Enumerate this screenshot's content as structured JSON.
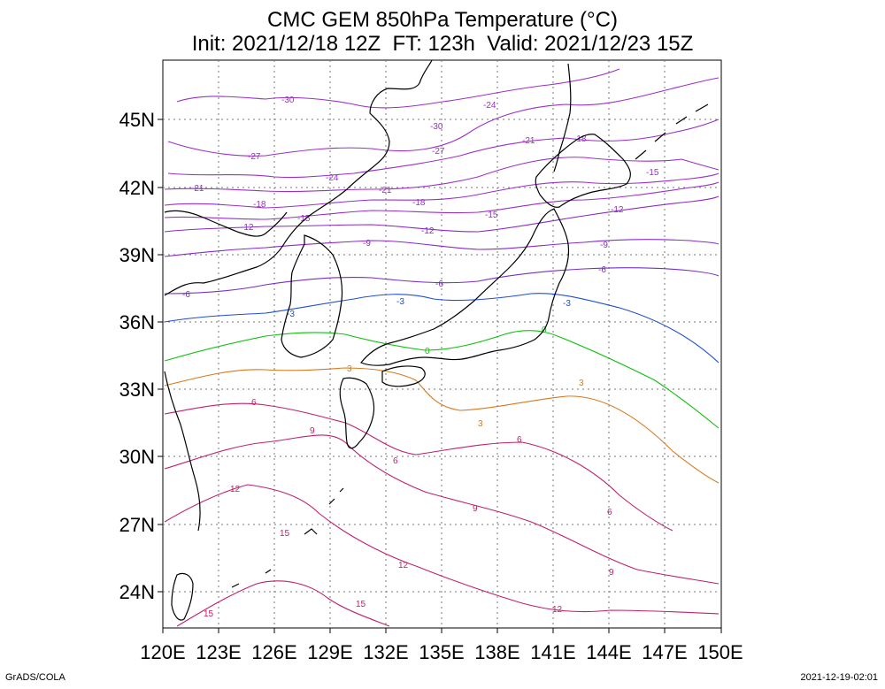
{
  "title_line1": "CMC GEM 850hPa Temperature (°C)",
  "title_line2": "Init: 2021/12/18 12Z  FT: 123h  Valid: 2021/12/23 15Z",
  "footer_left": "GrADS/COLA",
  "footer_right": "2021-12-19-02:01",
  "map": {
    "lon_range": [
      120,
      150
    ],
    "lat_range": [
      22.4,
      48.5
    ],
    "x_ticks": [
      "120E",
      "123E",
      "126E",
      "129E",
      "132E",
      "135E",
      "138E",
      "141E",
      "144E",
      "147E",
      "150E"
    ],
    "y_ticks": [
      "24N",
      "27N",
      "30N",
      "33N",
      "36N",
      "39N",
      "42N",
      "45N"
    ],
    "grid": true
  },
  "contours": [
    {
      "value": "-30",
      "color": "#9b30c8"
    },
    {
      "value": "-27",
      "color": "#9b30c8"
    },
    {
      "value": "-24",
      "color": "#9b30c8"
    },
    {
      "value": "-21",
      "color": "#9b30c8"
    },
    {
      "value": "-18",
      "color": "#9b30c8"
    },
    {
      "value": "-15",
      "color": "#9b30c8"
    },
    {
      "value": "-12",
      "color": "#8a2bc8"
    },
    {
      "value": "-9",
      "color": "#8a2bc8"
    },
    {
      "value": "-6",
      "color": "#7a2ec0"
    },
    {
      "value": "-3",
      "color": "#1f4fd6"
    },
    {
      "value": "0",
      "color": "#10c010"
    },
    {
      "value": "3",
      "color": "#d8781e"
    },
    {
      "value": "6",
      "color": "#c0206e"
    },
    {
      "value": "9",
      "color": "#c0206e"
    },
    {
      "value": "12",
      "color": "#c0206e"
    },
    {
      "value": "15",
      "color": "#c0206e"
    }
  ]
}
